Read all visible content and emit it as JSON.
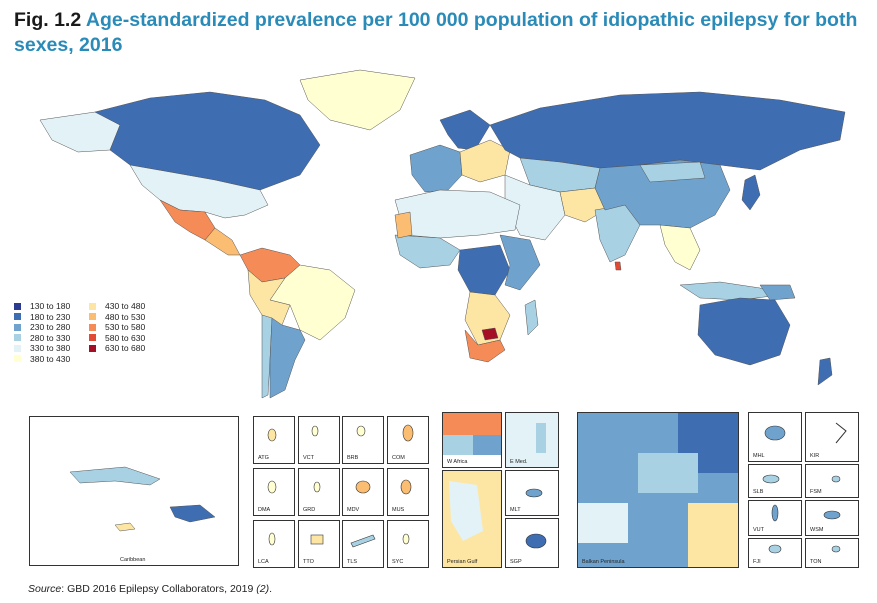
{
  "figure": {
    "number": "Fig. 1.2",
    "title": "Age-standardized prevalence per 100 000 population of idiopathic epilepsy for both sexes, 2016"
  },
  "legend": [
    {
      "label": "130  to  180",
      "color": "#2b3b8f"
    },
    {
      "label": "180  to  230",
      "color": "#3e6db2"
    },
    {
      "label": "230  to  280",
      "color": "#6fa3ce"
    },
    {
      "label": "280  to  330",
      "color": "#a8d1e4"
    },
    {
      "label": "330  to  380",
      "color": "#e3f2f7"
    },
    {
      "label": "380  to  430",
      "color": "#ffffd2"
    },
    {
      "label": "430  to  480",
      "color": "#fde6a4"
    },
    {
      "label": "480  to  530",
      "color": "#fbbd72"
    },
    {
      "label": "530  to  580",
      "color": "#f58b56"
    },
    {
      "label": "580  to  630",
      "color": "#e24a33"
    },
    {
      "label": "630  to  680",
      "color": "#a50f26"
    }
  ],
  "insets": {
    "caribbean": "Caribbean",
    "small": [
      "ATG",
      "VCT",
      "BRB",
      "COM",
      "DMA",
      "GRD",
      "MDV",
      "MUS",
      "LCA",
      "TTO",
      "TLS",
      "SYC"
    ],
    "w_africa": "W Africa",
    "e_med": "E Med.",
    "persian_gulf": "Persian Gulf",
    "mlt": "MLT",
    "sgp": "SGP",
    "balkan": "Balkan Peninsula",
    "pacific": [
      "MHL",
      "KIR",
      "SLB",
      "FSM",
      "VUT",
      "WSM",
      "FJI",
      "TON"
    ]
  },
  "source": {
    "prefix": "Source",
    "text": ": GBD 2016 Epilepsy Collaborators, 2019 ",
    "ref": "(2)",
    "end": "."
  }
}
